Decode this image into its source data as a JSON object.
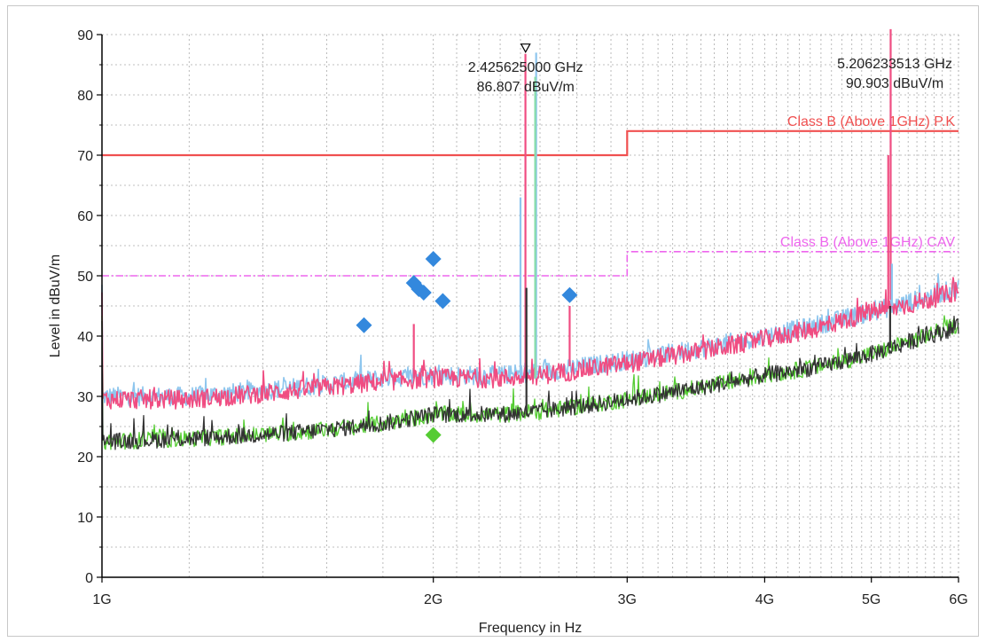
{
  "chart_data": {
    "type": "line",
    "x_scale": "log",
    "xlabel": "Frequency in Hz",
    "ylabel": "Level in dBuV/m",
    "xlim_hz": [
      1000000000,
      6000000000
    ],
    "ylim": [
      0,
      90
    ],
    "grid": true,
    "x_ticks": [
      {
        "value": 1000000000,
        "label": "1G"
      },
      {
        "value": 2000000000,
        "label": "2G"
      },
      {
        "value": 3000000000,
        "label": "3G"
      },
      {
        "value": 4000000000,
        "label": "4G"
      },
      {
        "value": 5000000000,
        "label": "5G"
      },
      {
        "value": 6000000000,
        "label": "6G"
      }
    ],
    "y_ticks": [
      0,
      10,
      20,
      30,
      40,
      50,
      60,
      70,
      80,
      90
    ],
    "limit_lines": [
      {
        "label": "Class B (Above 1GHz) P.K",
        "color": "#f05050",
        "style": "solid",
        "segments": [
          {
            "x_hz": [
              1000000000,
              3000000000
            ],
            "y": 70
          },
          {
            "x_hz": [
              3000000000,
              6000000000
            ],
            "y": 74
          }
        ]
      },
      {
        "label": "Class B (Above 1GHz) CAV",
        "color": "#ee66ee",
        "style": "dashdot",
        "segments": [
          {
            "x_hz": [
              1000000000,
              3000000000
            ],
            "y": 50
          },
          {
            "x_hz": [
              3000000000,
              6000000000
            ],
            "y": 54
          }
        ]
      }
    ],
    "series": [
      {
        "color": "#8ec6ee",
        "role": "peak-hv",
        "points": [
          [
            1.0,
            30
          ],
          [
            1.2,
            30
          ],
          [
            1.5,
            31.5
          ],
          [
            1.8,
            33
          ],
          [
            2.0,
            33.5
          ],
          [
            2.3,
            33.5
          ],
          [
            2.5,
            34
          ],
          [
            3.0,
            36
          ],
          [
            3.5,
            38
          ],
          [
            4.0,
            40
          ],
          [
            4.5,
            42
          ],
          [
            5.0,
            44
          ],
          [
            5.5,
            46
          ],
          [
            6.0,
            48
          ]
        ]
      },
      {
        "color": "#f04d82",
        "role": "peak",
        "points": [
          [
            1.0,
            29.5
          ],
          [
            1.2,
            29.5
          ],
          [
            1.5,
            31
          ],
          [
            1.8,
            32.5
          ],
          [
            2.0,
            33
          ],
          [
            2.3,
            33
          ],
          [
            2.5,
            33.5
          ],
          [
            3.0,
            35.5
          ],
          [
            3.5,
            37.5
          ],
          [
            4.0,
            39.5
          ],
          [
            4.5,
            41.5
          ],
          [
            5.0,
            44
          ],
          [
            5.5,
            45.5
          ],
          [
            6.0,
            47.5
          ]
        ]
      },
      {
        "color": "#55cc33",
        "role": "average-hv",
        "points": [
          [
            1.0,
            22.5
          ],
          [
            1.2,
            23
          ],
          [
            1.5,
            24
          ],
          [
            1.8,
            25.5
          ],
          [
            2.0,
            27
          ],
          [
            2.3,
            27
          ],
          [
            2.5,
            27.5
          ],
          [
            3.0,
            29.5
          ],
          [
            3.5,
            31.5
          ],
          [
            4.0,
            33.5
          ],
          [
            4.5,
            35
          ],
          [
            5.0,
            37
          ],
          [
            5.5,
            39.5
          ],
          [
            6.0,
            42
          ]
        ]
      },
      {
        "color": "#333333",
        "role": "average",
        "points": [
          [
            1.0,
            22.5
          ],
          [
            1.2,
            23
          ],
          [
            1.5,
            24
          ],
          [
            1.8,
            25.5
          ],
          [
            2.0,
            27
          ],
          [
            2.3,
            27
          ],
          [
            2.5,
            27.5
          ],
          [
            3.0,
            29.5
          ],
          [
            3.5,
            31.5
          ],
          [
            4.0,
            33.5
          ],
          [
            4.5,
            35
          ],
          [
            5.0,
            37
          ],
          [
            5.5,
            39.5
          ],
          [
            6.0,
            41.5
          ]
        ]
      }
    ],
    "spikes": [
      {
        "x_ghz": 2.425,
        "top": 86.8,
        "base": 33,
        "color": "#f04d82"
      },
      {
        "x_ghz": 2.4,
        "top": 63,
        "base": 33,
        "color": "#8ec6ee"
      },
      {
        "x_ghz": 2.48,
        "top": 87,
        "base": 33,
        "color": "#8ec6ee"
      },
      {
        "x_ghz": 2.475,
        "top": 83,
        "base": 33,
        "color": "#88ddaa"
      },
      {
        "x_ghz": 2.43,
        "top": 48,
        "base": 27,
        "color": "#333333"
      },
      {
        "x_ghz": 2.66,
        "top": 45,
        "base": 35,
        "color": "#f04d82"
      },
      {
        "x_ghz": 1.92,
        "top": 42,
        "base": 33,
        "color": "#f04d82"
      },
      {
        "x_ghz": 5.206,
        "top": 90.9,
        "base": 46,
        "color": "#f04d82"
      },
      {
        "x_ghz": 5.18,
        "top": 70,
        "base": 45,
        "color": "#f04d82"
      },
      {
        "x_ghz": 5.22,
        "top": 52,
        "base": 45,
        "color": "#8ec6ee"
      },
      {
        "x_ghz": 5.2,
        "top": 45,
        "base": 38,
        "color": "#333333"
      }
    ],
    "final_measurements": [
      {
        "x_ghz": 1.73,
        "y": 41.8,
        "color": "#3388dd"
      },
      {
        "x_ghz": 1.92,
        "y": 48.8,
        "color": "#3388dd"
      },
      {
        "x_ghz": 1.94,
        "y": 47.8,
        "color": "#3388dd"
      },
      {
        "x_ghz": 1.96,
        "y": 47.2,
        "color": "#3388dd"
      },
      {
        "x_ghz": 2.0,
        "y": 52.8,
        "color": "#3388dd"
      },
      {
        "x_ghz": 2.04,
        "y": 45.8,
        "color": "#3388dd"
      },
      {
        "x_ghz": 2.66,
        "y": 46.8,
        "color": "#3388dd"
      },
      {
        "x_ghz": 2.0,
        "y": 23.6,
        "color": "#55cc33"
      }
    ],
    "markers": [
      {
        "x_ghz": 2.425625,
        "y": 86.807,
        "freq_label": "2.425625000 GHz",
        "level_label": "86.807 dBuV/m"
      },
      {
        "x_ghz": 5.206233513,
        "y": 90.903,
        "freq_label": "5.206233513 GHz",
        "level_label": "90.903 dBuV/m"
      }
    ]
  }
}
